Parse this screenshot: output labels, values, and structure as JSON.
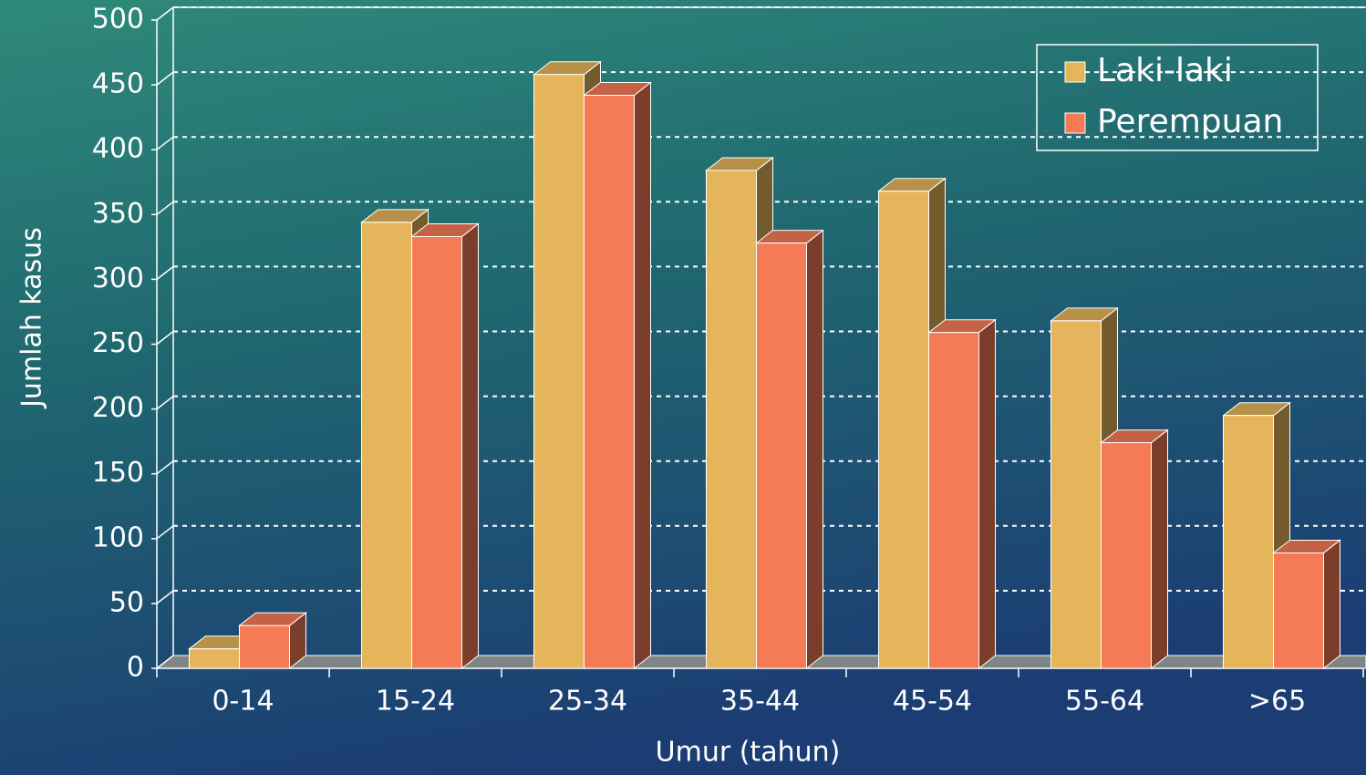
{
  "chart_data": {
    "type": "bar3d",
    "x_label": "Umur (tahun)",
    "y_label": "Jumlah kasus",
    "categories": [
      "0-14",
      "15-24",
      "25-34",
      "35-44",
      "45-54",
      "55-64",
      ">65"
    ],
    "series": [
      {
        "name": "Laki-laki",
        "color": "#e5b55b",
        "values": [
          15,
          344,
          458,
          384,
          368,
          268,
          195
        ]
      },
      {
        "name": "Perempuan",
        "color": "#f47b56",
        "values": [
          33,
          333,
          442,
          328,
          259,
          174,
          89
        ]
      }
    ],
    "ylim": [
      0,
      500
    ],
    "yticks": [
      0,
      50,
      100,
      150,
      200,
      250,
      300,
      350,
      400,
      450,
      500
    ],
    "grid": true,
    "legend": "top-right"
  }
}
